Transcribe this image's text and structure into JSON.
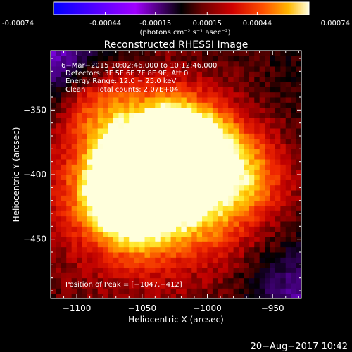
{
  "chart_data": {
    "type": "heatmap",
    "title": "Reconstructed RHESSI Image",
    "colorbar": {
      "ticks": [
        "-0.00074",
        "-0.00044",
        "-0.00015",
        "0.00015",
        "0.00044",
        "0.00074"
      ],
      "tick_values": [
        -0.00074,
        -0.00044,
        -0.00015,
        0.00015,
        0.00044,
        0.00074
      ],
      "range": [
        -0.00074,
        0.00074
      ],
      "unit_label": "(photons cm⁻² s⁻¹ asec⁻²)"
    },
    "xlabel": "Heliocentric X (arcsec)",
    "ylabel": "Heliocentric Y (arcsec)",
    "xlim": [
      -1120,
      -928
    ],
    "ylim": [
      -496,
      -304
    ],
    "xticks": [
      {
        "value": -1100,
        "label": "−1100"
      },
      {
        "value": -1050,
        "label": "−1050"
      },
      {
        "value": -1000,
        "label": "−1000"
      },
      {
        "value": -950,
        "label": "−950"
      }
    ],
    "yticks": [
      {
        "value": -350,
        "label": "−350"
      },
      {
        "value": -400,
        "label": "−400"
      },
      {
        "value": -450,
        "label": "−450"
      }
    ],
    "annotations": [
      " 6−Mar−2015 10:02:46.000 to 10:12:46.000",
      "Detectors: 3F 5F 6F 7F 8F 9F, Att 0",
      "Energy Range: 12.0 − 25.0 keV",
      "Clean     Total counts: 2.07E+04"
    ],
    "peak_label": "Position of Peak = [−1047,−412]",
    "peak": [
      -1047,
      -412
    ],
    "sources": [
      {
        "x": -1047,
        "y": -412,
        "peak": 1.0
      },
      {
        "x": -1022,
        "y": -388,
        "peak": 0.96
      },
      {
        "x": -1032,
        "y": -362,
        "peak": 0.55
      },
      {
        "x": -1062,
        "y": -395,
        "peak": 0.8
      },
      {
        "x": -968,
        "y": -402,
        "peak": 0.5
      },
      {
        "x": -1000,
        "y": -378,
        "peak": 0.55
      },
      {
        "x": -1085,
        "y": -345,
        "peak": 0.45
      },
      {
        "x": -1050,
        "y": -440,
        "peak": 0.4
      },
      {
        "x": -1080,
        "y": -420,
        "peak": 0.4
      },
      {
        "x": -1000,
        "y": -430,
        "peak": 0.4
      }
    ],
    "pixel_size_arcsec": 4
  },
  "footer": {
    "timestamp": "20−Aug−2017 10:42"
  }
}
